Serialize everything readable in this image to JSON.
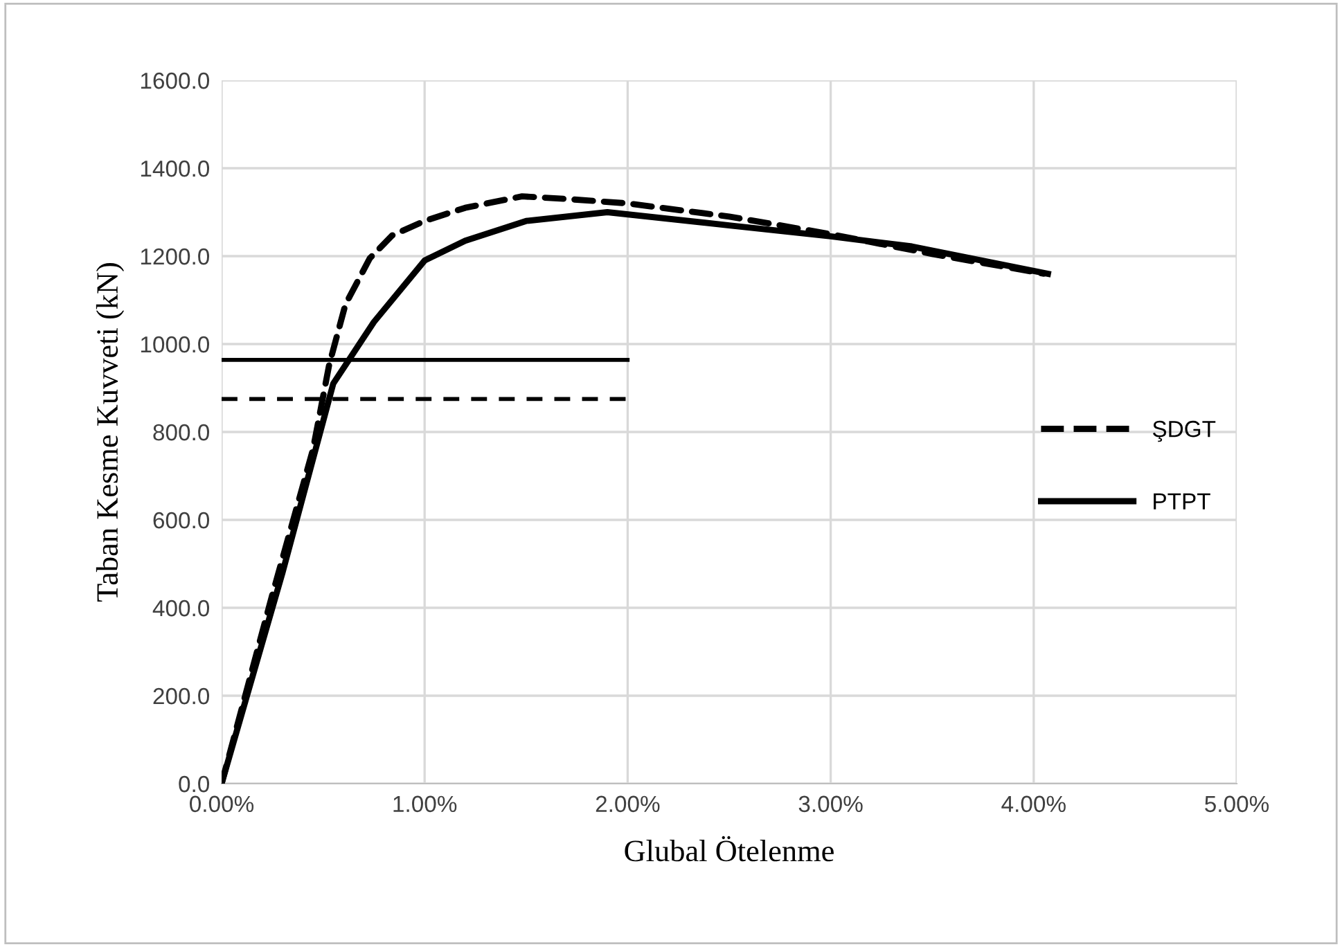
{
  "chart_data": {
    "type": "line",
    "xlabel": "Glubal Ötelenme",
    "ylabel": "Taban Kesme Kuvveti (kN)",
    "xlim": [
      0,
      5
    ],
    "xticks": [
      {
        "value": 0,
        "label": "0.00%"
      },
      {
        "value": 1,
        "label": "1.00%"
      },
      {
        "value": 2,
        "label": "2.00%"
      },
      {
        "value": 3,
        "label": "3.00%"
      },
      {
        "value": 4,
        "label": "4.00%"
      },
      {
        "value": 5,
        "label": "5.00%"
      }
    ],
    "ylim": [
      0,
      1600
    ],
    "yticks": [
      {
        "value": 0,
        "label": "0.0"
      },
      {
        "value": 200,
        "label": "200.0"
      },
      {
        "value": 400,
        "label": "400.0"
      },
      {
        "value": 600,
        "label": "600.0"
      },
      {
        "value": 800,
        "label": "800.0"
      },
      {
        "value": 1000,
        "label": "1000.0"
      },
      {
        "value": 1200,
        "label": "1200.0"
      },
      {
        "value": 1400,
        "label": "1400.0"
      },
      {
        "value": 1600,
        "label": "1600.0"
      }
    ],
    "grid": true,
    "legend": "right",
    "series": [
      {
        "name": "ŞDGT",
        "color": "#000000",
        "line_style": "dashed",
        "x": [
          0,
          0.25,
          0.45,
          0.53,
          0.61,
          0.73,
          0.84,
          1.0,
          1.2,
          1.48,
          1.7,
          2.0,
          2.5,
          3.0,
          3.5,
          4.05
        ],
        "values": [
          0,
          430,
          760,
          953,
          1090,
          1195,
          1247,
          1280,
          1310,
          1336,
          1330,
          1320,
          1290,
          1250,
          1205,
          1160
        ]
      },
      {
        "name": "PTPT",
        "color": "#000000",
        "line_style": "solid",
        "x": [
          0,
          0.3,
          0.55,
          0.75,
          1.0,
          1.2,
          1.5,
          1.9,
          2.5,
          3.0,
          3.4,
          4.07
        ],
        "values": [
          0,
          480,
          910,
          1050,
          1190,
          1235,
          1280,
          1300,
          1270,
          1245,
          1222,
          1160
        ]
      },
      {
        "color": "#000000",
        "line_style": "solid",
        "x": [
          0,
          2.0
        ],
        "values": [
          964,
          964
        ]
      },
      {
        "color": "#000000",
        "line_style": "dashed",
        "x": [
          0,
          1.99
        ],
        "values": [
          875,
          875
        ]
      }
    ]
  }
}
